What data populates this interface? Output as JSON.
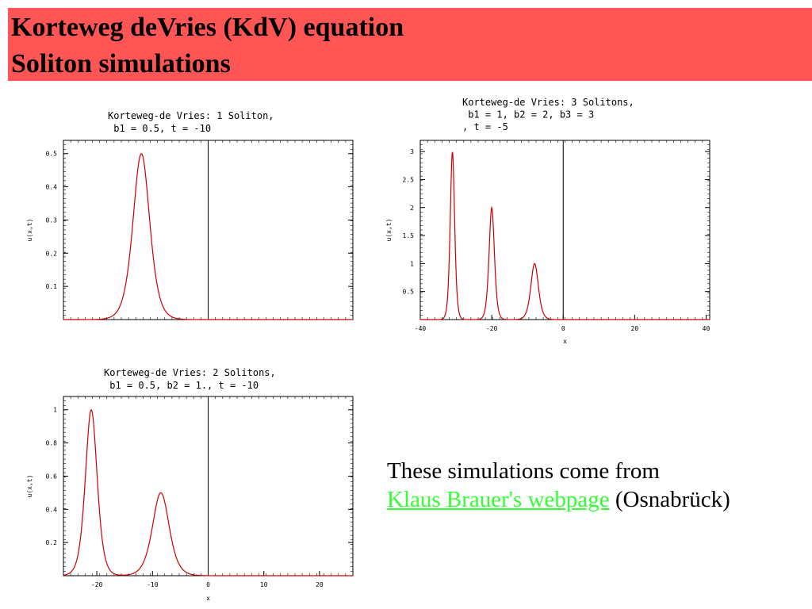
{
  "slide": {
    "title_line1": "Korteweg deVries (KdV) equation",
    "title_line2": "Soliton simulations",
    "banner_color": "#ff5555",
    "credit_line1": "These simulations come from",
    "credit_link": "Klaus Brauer's webpage",
    "credit_suffix": "(Osnabrück)",
    "link_color": "#33ff33"
  },
  "chart_data": [
    {
      "type": "line",
      "title_lines": [
        "Korteweg-de Vries: 1 Soliton,",
        " b1 = 0.5, t = -10"
      ],
      "xlabel": "",
      "ylabel": "u(x,t)",
      "xlim": [
        -26,
        26
      ],
      "ylim": [
        0,
        0.54
      ],
      "x_ticks": [],
      "y_ticks": [
        "0.1",
        "0.2",
        "0.3",
        "0.4",
        "0.5"
      ],
      "series": [
        {
          "color": "#cc0000",
          "solitons": [
            {
              "amplitude": 0.5,
              "center": -12,
              "width": 2.0
            }
          ]
        }
      ],
      "vline_x": 0
    },
    {
      "type": "line",
      "title_lines": [
        "Korteweg-de Vries: 3 Solitons,",
        " b1 = 1, b2 = 2, b3 = 3",
        ", t = -5"
      ],
      "xlabel": "x",
      "ylabel": "u(x,t)",
      "xlim": [
        -40,
        41
      ],
      "ylim": [
        0,
        3.2
      ],
      "x_ticks": [
        "-40",
        "-20",
        "0",
        "20",
        "40"
      ],
      "y_ticks": [
        "0.5",
        "1",
        "1.5",
        "2",
        "2.5",
        "3"
      ],
      "series": [
        {
          "color": "#cc0000",
          "solitons": [
            {
              "amplitude": 3,
              "center": -31,
              "width": 0.82
            },
            {
              "amplitude": 2,
              "center": -20,
              "width": 1.0
            },
            {
              "amplitude": 1,
              "center": -8,
              "width": 1.41
            }
          ]
        }
      ],
      "vline_x": 0
    },
    {
      "type": "line",
      "title_lines": [
        "Korteweg-de Vries: 2 Solitons,",
        " b1 = 0.5, b2 = 1., t = -10"
      ],
      "xlabel": "x",
      "ylabel": "u(x,t)",
      "xlim": [
        -26,
        26
      ],
      "ylim": [
        0,
        1.08
      ],
      "x_ticks": [
        "-20",
        "-10",
        "0",
        "10",
        "20"
      ],
      "y_ticks": [
        "0.2",
        "0.4",
        "0.6",
        "0.8",
        "1"
      ],
      "series": [
        {
          "color": "#cc0000",
          "solitons": [
            {
              "amplitude": 1,
              "center": -21,
              "width": 1.41
            },
            {
              "amplitude": 0.5,
              "center": -8.5,
              "width": 2.0
            }
          ]
        }
      ],
      "vline_x": 0
    }
  ]
}
